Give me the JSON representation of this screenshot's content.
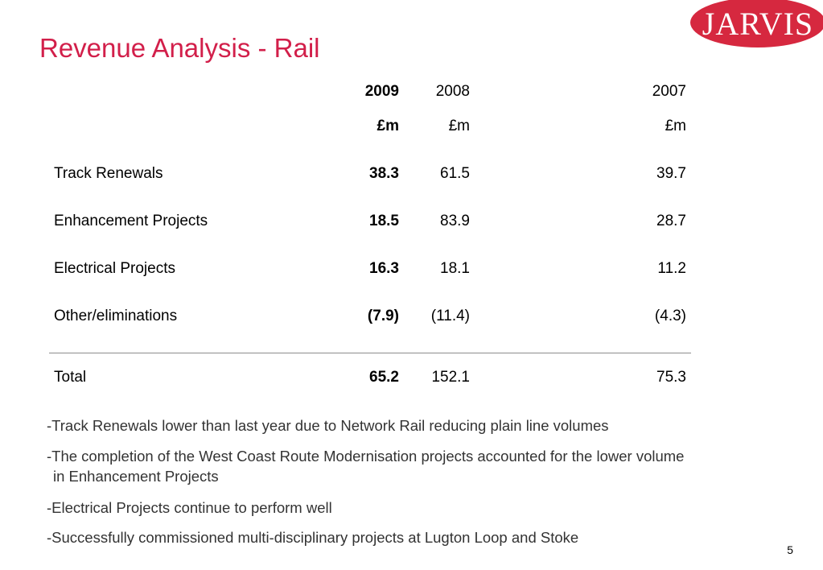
{
  "logo": {
    "text": "JARVIS"
  },
  "slide": {
    "title": "Revenue Analysis - Rail",
    "page_number": "5"
  },
  "table": {
    "years": [
      "2009",
      "2008",
      "2007"
    ],
    "units": [
      "£m",
      "£m",
      "£m"
    ],
    "rows": [
      {
        "label": "Track Renewals",
        "v2009": "38.3",
        "v2008": "61.5",
        "v2007": "39.7"
      },
      {
        "label": "Enhancement Projects",
        "v2009": "18.5",
        "v2008": "83.9",
        "v2007": "28.7"
      },
      {
        "label": "Electrical Projects",
        "v2009": "16.3",
        "v2008": "18.1",
        "v2007": "11.2"
      },
      {
        "label": "Other/eliminations",
        "v2009": "(7.9)",
        "v2008": "(11.4)",
        "v2007": "(4.3)"
      }
    ],
    "total": {
      "label": "Total",
      "v2009": "65.2",
      "v2008": "152.1",
      "v2007": "75.3"
    }
  },
  "notes": [
    "-Track Renewals lower than last year due to Network Rail reducing plain line volumes",
    "-The completion of the West Coast Route Modernisation projects accounted for the lower volume",
    "in Enhancement Projects",
    "-Electrical Projects continue to perform well",
    "-Successfully commissioned multi-disciplinary projects at Lugton Loop and Stoke"
  ],
  "colors": {
    "accent": "#d21f4a",
    "logo_red": "#d6283f",
    "divider": "#8c8c8c"
  }
}
